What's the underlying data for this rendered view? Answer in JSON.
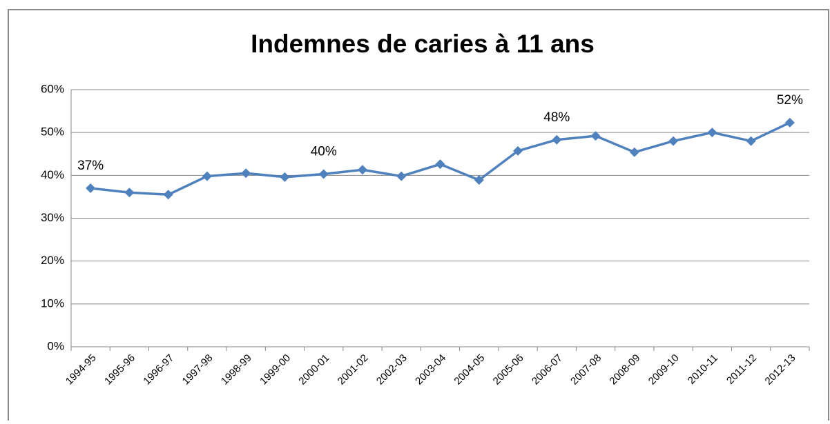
{
  "chart_data": {
    "type": "line",
    "title": "Indemnes de caries  à 11 ans",
    "categories": [
      "1994-95",
      "1995-96",
      "1996-97",
      "1997-98",
      "1998-99",
      "1999-00",
      "2000-01",
      "2001-02",
      "2002-03",
      "2003-04",
      "2004-05",
      "2005-06",
      "2006-07",
      "2007-08",
      "2008-09",
      "2009-10",
      "2010-11",
      "2011-12",
      "2012-13"
    ],
    "series": [
      {
        "name": "Indemnes de caries",
        "color": "#4f81bd",
        "values": [
          37,
          36,
          35.5,
          39.8,
          40.5,
          39.6,
          40.3,
          41.3,
          39.8,
          42.6,
          38.9,
          45.7,
          48.3,
          49.2,
          45.4,
          48,
          50,
          48,
          52.3
        ],
        "value_labels": [
          "37%",
          null,
          null,
          null,
          null,
          null,
          "40%",
          null,
          null,
          null,
          null,
          null,
          "48%",
          null,
          null,
          null,
          null,
          null,
          "52%"
        ]
      }
    ],
    "ylim": [
      0,
      60
    ],
    "yticks": [
      {
        "value": 0,
        "label": "0%"
      },
      {
        "value": 10,
        "label": "10%"
      },
      {
        "value": 20,
        "label": "20%"
      },
      {
        "value": 30,
        "label": "30%"
      },
      {
        "value": 40,
        "label": "40%"
      },
      {
        "value": 50,
        "label": "50%"
      },
      {
        "value": 60,
        "label": "60%"
      }
    ],
    "grid": true
  }
}
